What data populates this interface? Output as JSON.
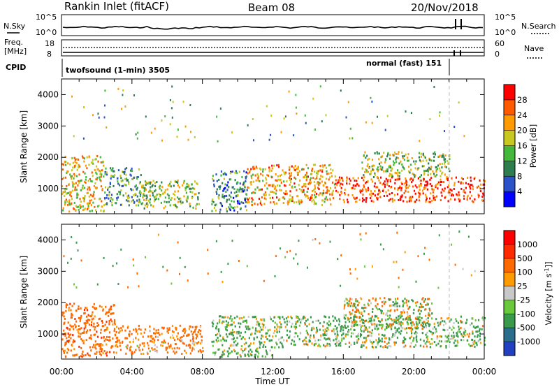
{
  "header": {
    "title": "Rankin Inlet (fitACF)",
    "beam": "Beam 08",
    "date": "20/Nov/2018"
  },
  "top_panels": {
    "nsky_label": "N.Sky",
    "nsearch_label": "N.Search",
    "nsky_ticks": [
      "10^5",
      "10^0"
    ],
    "nsearch_ticks": [
      "10^5",
      "10^0"
    ],
    "freq_label": "Freq.",
    "freq_unit": "[MHz]",
    "freq_ticks": [
      "18",
      "8"
    ],
    "nave_label": "Nave",
    "nave_ticks": [
      "60",
      "0"
    ],
    "cpid_label": "CPID",
    "cpid_segments": [
      {
        "label": "twofsound (1-min) 3505"
      },
      {
        "label": "normal (fast) 151"
      }
    ]
  },
  "x_axis": {
    "ticks": [
      "00:00",
      "04:00",
      "08:00",
      "12:00",
      "16:00",
      "20:00",
      "00:00"
    ],
    "label": "Time UT"
  },
  "colors": {
    "power_scale": [
      "#0000ff",
      "#2b52c8",
      "#2e7d4f",
      "#44b83a",
      "#c8c820",
      "#ff9a00",
      "#ff5a00",
      "#ff0000"
    ],
    "velocity_scale": [
      "#2040c0",
      "#2a6e8c",
      "#3a9a4c",
      "#6ac83c",
      "#c8c8c8",
      "#ff9a00",
      "#ff6a00",
      "#ff2a00",
      "#ff0000"
    ]
  },
  "chart_data": [
    {
      "type": "heatmap",
      "name": "power",
      "ylabel": "Slant Range [km]",
      "yticks": [
        "4000",
        "3000",
        "2000",
        "1000"
      ],
      "ylim": [
        200,
        4500
      ],
      "xlim_hours": [
        0,
        24
      ],
      "colorbar": {
        "label": "Power [dB]",
        "ticks": [
          "28",
          "24",
          "20",
          "16",
          "12",
          "8",
          "4"
        ],
        "range": [
          0,
          32
        ]
      },
      "echo_regions": [
        {
          "t_start": 0.0,
          "t_end": 2.4,
          "r_low": 300,
          "r_high": 2100,
          "power_db": 20
        },
        {
          "t_start": 2.4,
          "t_end": 4.5,
          "r_low": 500,
          "r_high": 1700,
          "power_db": 12
        },
        {
          "t_start": 4.5,
          "t_end": 7.8,
          "r_low": 400,
          "r_high": 1300,
          "power_db": 16
        },
        {
          "t_start": 8.5,
          "t_end": 10.5,
          "r_low": 300,
          "r_high": 1600,
          "power_db": 10
        },
        {
          "t_start": 10.5,
          "t_end": 15.5,
          "r_low": 500,
          "r_high": 1800,
          "power_db": 22
        },
        {
          "t_start": 15.5,
          "t_end": 24.0,
          "r_low": 600,
          "r_high": 1400,
          "power_db": 28
        },
        {
          "t_start": 17.0,
          "t_end": 22.0,
          "r_low": 1400,
          "r_high": 2200,
          "power_db": 16
        }
      ]
    },
    {
      "type": "heatmap",
      "name": "velocity",
      "ylabel": "Slant Range [km]",
      "yticks": [
        "4000",
        "3000",
        "2000",
        "1000"
      ],
      "ylim": [
        200,
        4500
      ],
      "xlim_hours": [
        0,
        24
      ],
      "colorbar": {
        "label": "Velocity [m s^-1]",
        "ticks": [
          "1000",
          "500",
          "100",
          "25",
          "-25",
          "-100",
          "-500",
          "-1000"
        ]
      },
      "echo_regions": [
        {
          "t_start": 0.0,
          "t_end": 3.0,
          "r_low": 300,
          "r_high": 2000,
          "velocity": 300
        },
        {
          "t_start": 3.0,
          "t_end": 8.0,
          "r_low": 400,
          "r_high": 1300,
          "velocity": 200
        },
        {
          "t_start": 8.5,
          "t_end": 12.0,
          "r_low": 300,
          "r_high": 1600,
          "velocity": -150
        },
        {
          "t_start": 12.0,
          "t_end": 24.0,
          "r_low": 600,
          "r_high": 1600,
          "velocity": -120
        },
        {
          "t_start": 16.0,
          "t_end": 21.0,
          "r_low": 1200,
          "r_high": 2200,
          "velocity": 0
        }
      ]
    }
  ]
}
